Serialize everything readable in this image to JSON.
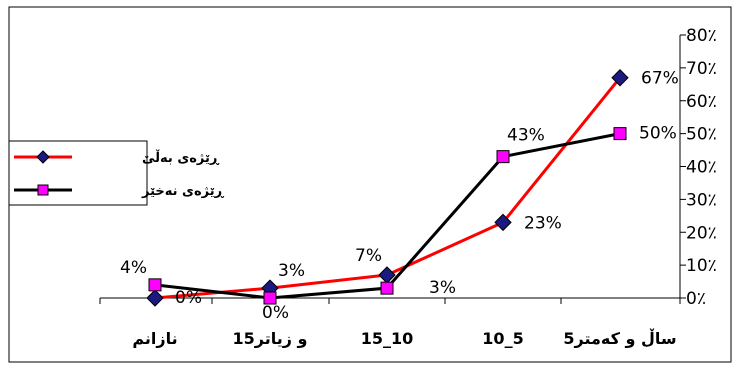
{
  "chart_data": {
    "type": "line",
    "title": "",
    "xlabel": "",
    "ylabel": "",
    "categories": [
      "نازانم",
      "15و زیاتر",
      "15_10",
      "10_5",
      "5ساڵ و کەمتر"
    ],
    "y_ticks": [
      "0٪",
      "10٪",
      "20٪",
      "30٪",
      "40٪",
      "50٪",
      "60٪",
      "70٪",
      "80٪"
    ],
    "ylim": [
      0,
      80
    ],
    "y_axis_side": "right",
    "grid": false,
    "legend_position": "left",
    "series": [
      {
        "name": "ڕێژەی بەڵێ",
        "values": [
          0,
          3,
          7,
          23,
          67
        ],
        "labels": [
          "0%",
          "3%",
          "7%",
          "23%",
          "67%"
        ],
        "line_color": "#ff0000",
        "marker": "diamond",
        "marker_color": "#1a1a80"
      },
      {
        "name": "ڕێژەی نەخێر",
        "values": [
          4,
          0,
          3,
          43,
          50
        ],
        "labels": [
          "4%",
          "0%",
          "3%",
          "43%",
          "50%"
        ],
        "line_color": "#000000",
        "marker": "square",
        "marker_color": "#ff00ff"
      }
    ]
  }
}
